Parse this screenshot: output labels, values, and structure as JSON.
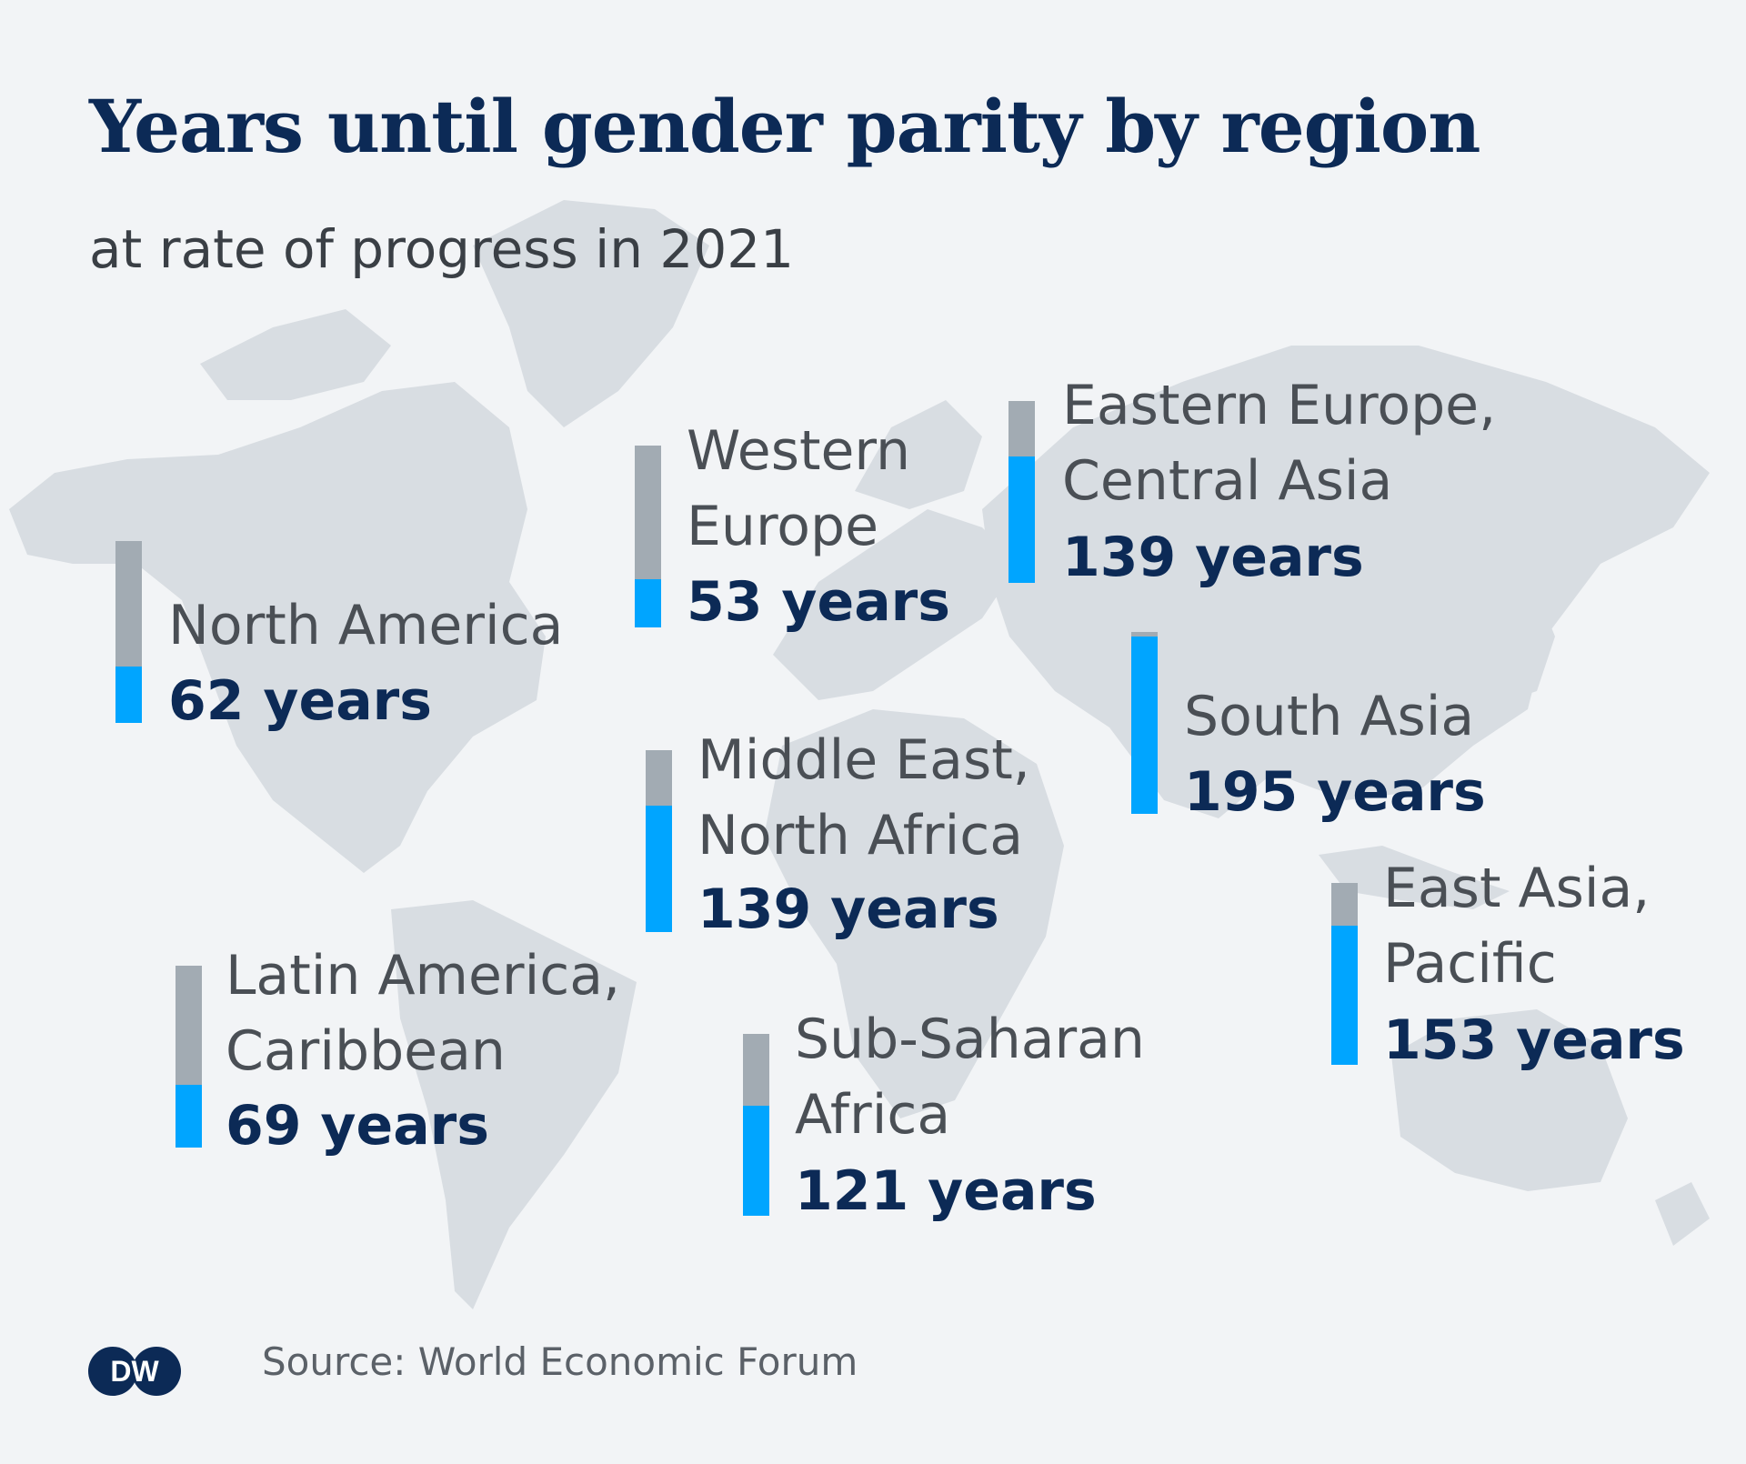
{
  "title": "Years until gender parity by region",
  "subtitle": "at rate of progress in 2021",
  "source": "Source: World Economic Forum",
  "logo_text": "DW",
  "colors": {
    "background": "#f2f4f6",
    "map": "#d8dde2",
    "bar_empty": "#a2abb3",
    "bar_fill": "#00a5ff",
    "value_text": "#0c2a56",
    "label_text": "#4a4f55"
  },
  "chart_data": {
    "type": "bar",
    "ylim": [
      0,
      200
    ],
    "categories": [
      "North America",
      "Western Europe",
      "Eastern Europe, Central Asia",
      "South Asia",
      "Middle East, North Africa",
      "East Asia, Pacific",
      "Latin America, Caribbean",
      "Sub-Saharan Africa"
    ],
    "values": [
      62,
      53,
      139,
      195,
      139,
      153,
      69,
      121
    ],
    "regions": [
      {
        "id": "north-america",
        "lines": [
          "North America"
        ],
        "value": 62,
        "value_label": "62 years"
      },
      {
        "id": "western-europe",
        "lines": [
          "Western",
          "Europe"
        ],
        "value": 53,
        "value_label": "53 years"
      },
      {
        "id": "eastern-europe-central-asia",
        "lines": [
          "Eastern Europe,",
          "Central Asia"
        ],
        "value": 139,
        "value_label": "139 years"
      },
      {
        "id": "south-asia",
        "lines": [
          "South Asia"
        ],
        "value": 195,
        "value_label": "195 years"
      },
      {
        "id": "middle-east-north-africa",
        "lines": [
          "Middle East,",
          "North Africa"
        ],
        "value": 139,
        "value_label": "139 years"
      },
      {
        "id": "east-asia-pacific",
        "lines": [
          "East Asia,",
          "Pacific"
        ],
        "value": 153,
        "value_label": "153 years"
      },
      {
        "id": "latin-america-caribbean",
        "lines": [
          "Latin America,",
          "Caribbean"
        ],
        "value": 69,
        "value_label": "69 years"
      },
      {
        "id": "sub-saharan-africa",
        "lines": [
          "Sub-Saharan",
          "Africa"
        ],
        "value": 121,
        "value_label": "121 years"
      }
    ]
  }
}
